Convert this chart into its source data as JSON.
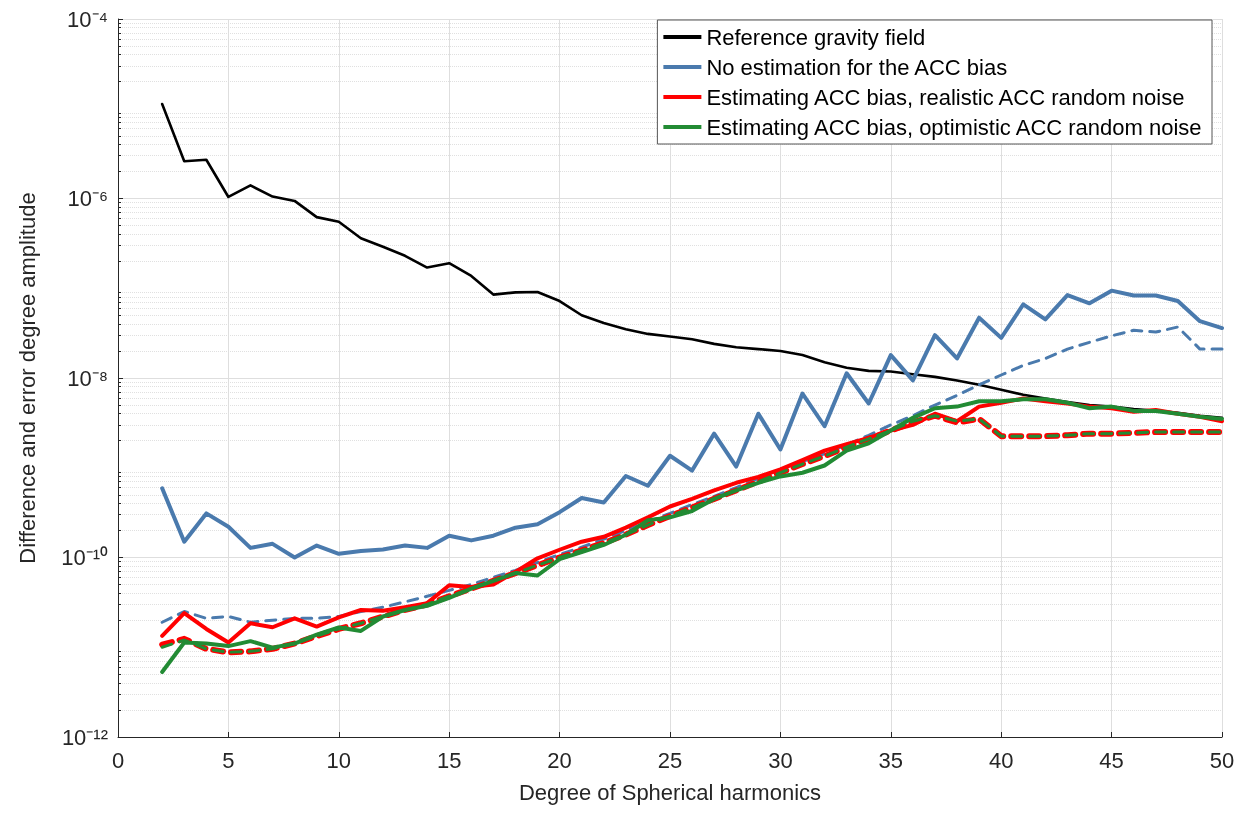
{
  "chart_data": {
    "type": "line",
    "xlabel": "Degree of Spherical harmonics",
    "ylabel": "Difference and error degree amplitude",
    "x": [
      2,
      3,
      4,
      5,
      6,
      7,
      8,
      9,
      10,
      11,
      12,
      13,
      14,
      15,
      16,
      17,
      18,
      19,
      20,
      21,
      22,
      23,
      24,
      25,
      26,
      27,
      28,
      29,
      30,
      31,
      32,
      33,
      34,
      35,
      36,
      37,
      38,
      39,
      40,
      41,
      42,
      43,
      44,
      45,
      46,
      47,
      48,
      49,
      50
    ],
    "xlim": [
      0,
      50
    ],
    "xticks": [
      0,
      5,
      10,
      15,
      20,
      25,
      30,
      35,
      40,
      45,
      50
    ],
    "ylim": [
      1e-12,
      0.0001
    ],
    "yticks": [
      {
        "value": 1e-12,
        "label": "10⁻¹²"
      },
      {
        "value": 1e-10,
        "label": "10⁻¹⁰"
      },
      {
        "value": 1e-08,
        "label": "10⁻⁸"
      },
      {
        "value": 1e-06,
        "label": "10⁻⁶"
      },
      {
        "value": 0.0001,
        "label": "10⁻⁴"
      }
    ],
    "log": "y",
    "grid": true,
    "legend": "top right",
    "marker": "none",
    "line_style": "solid",
    "series": [
      {
        "name": "Reference gravity field",
        "color": "#000000",
        "values": [
          1.13e-05,
          2.6e-06,
          2.7e-06,
          1.04e-06,
          1.4e-06,
          1.05e-06,
          9.4e-07,
          6.2e-07,
          5.5e-07,
          3.6e-07,
          2.9e-07,
          2.3e-07,
          1.7e-07,
          1.9e-07,
          1.37e-07,
          8.5e-08,
          9e-08,
          9.1e-08,
          7.2e-08,
          5e-08,
          4.1e-08,
          3.5e-08,
          3.1e-08,
          2.9e-08,
          2.7e-08,
          2.4e-08,
          2.2e-08,
          2.1e-08,
          2e-08,
          1.8e-08,
          1.5e-08,
          1.3e-08,
          1.2e-08,
          1.18e-08,
          1.1e-08,
          1.03e-08,
          9.4e-09,
          8.4e-09,
          7.4e-09,
          6.5e-09,
          5.9e-09,
          5.4e-09,
          5e-09,
          4.8e-09,
          4.5e-09,
          4.3e-09,
          4.1e-09,
          3.8e-09,
          3.6e-09
        ]
      },
      {
        "name": "No estimation for the ACC bias",
        "color": "#4a7aad",
        "values": [
          5.9e-10,
          1.5e-10,
          3.1e-10,
          2.2e-10,
          1.28e-10,
          1.42e-10,
          1e-10,
          1.36e-10,
          1.1e-10,
          1.18e-10,
          1.23e-10,
          1.36e-10,
          1.28e-10,
          1.75e-10,
          1.55e-10,
          1.75e-10,
          2.15e-10,
          2.35e-10,
          3.2e-10,
          4.6e-10,
          4.1e-10,
          8.1e-10,
          6.3e-10,
          1.36e-09,
          9.3e-10,
          2.4e-09,
          1.03e-09,
          4e-09,
          1.6e-09,
          6.7e-09,
          2.9e-09,
          1.13e-08,
          5.2e-09,
          1.8e-08,
          9.4e-09,
          3e-08,
          1.65e-08,
          4.7e-08,
          2.8e-08,
          6.6e-08,
          4.5e-08,
          8.4e-08,
          6.8e-08,
          9.4e-08,
          8.3e-08,
          8.3e-08,
          7.2e-08,
          4.3e-08,
          3.6e-08
        ]
      },
      {
        "color": "#4a7aad",
        "line_style": "dashed",
        "values": [
          1.9e-11,
          2.5e-11,
          2.1e-11,
          2.2e-11,
          1.9e-11,
          2e-11,
          2.1e-11,
          2.1e-11,
          2.2e-11,
          2.5e-11,
          2.8e-11,
          3.2e-11,
          3.7e-11,
          4.3e-11,
          5e-11,
          6e-11,
          7.2e-11,
          8.8e-11,
          1.08e-10,
          1.3e-10,
          1.6e-10,
          2e-10,
          2.5e-10,
          3.1e-10,
          3.9e-10,
          4.8e-10,
          6e-10,
          7.6e-10,
          9.6e-10,
          1.17e-09,
          1.43e-09,
          1.8e-09,
          2.3e-09,
          3e-09,
          3.8e-09,
          5e-09,
          6.4e-09,
          8.4e-09,
          1.08e-08,
          1.38e-08,
          1.65e-08,
          2.1e-08,
          2.5e-08,
          2.95e-08,
          3.4e-08,
          3.25e-08,
          3.7e-08,
          2.1e-08,
          2.1e-08
        ]
      },
      {
        "name": "Estimating ACC bias, realistic ACC random noise",
        "color": "#ff0000",
        "values": [
          1.34e-11,
          2.4e-11,
          1.6e-11,
          1.13e-11,
          1.85e-11,
          1.67e-11,
          2.1e-11,
          1.7e-11,
          2.15e-11,
          2.6e-11,
          2.55e-11,
          2.8e-11,
          3.1e-11,
          4.9e-11,
          4.7e-11,
          5e-11,
          6.9e-11,
          9.8e-11,
          1.22e-10,
          1.5e-10,
          1.7e-10,
          2.15e-10,
          2.8e-10,
          3.7e-10,
          4.5e-10,
          5.6e-10,
          6.8e-10,
          7.9e-10,
          9.6e-10,
          1.22e-09,
          1.55e-09,
          1.83e-09,
          2.15e-09,
          2.6e-09,
          3e-09,
          4e-09,
          3.3e-09,
          4.8e-09,
          5.3e-09,
          5.9e-09,
          5.5e-09,
          5.2e-09,
          4.8e-09,
          4.6e-09,
          4.2e-09,
          4.4e-09,
          4e-09,
          3.7e-09,
          3.3e-09
        ]
      },
      {
        "color": "#ff0000",
        "line_style": "dashed",
        "values": [
          1.07e-11,
          1.24e-11,
          9.6e-12,
          8.8e-12,
          9e-12,
          9.6e-12,
          1.1e-11,
          1.33e-11,
          1.6e-11,
          1.85e-11,
          2.2e-11,
          2.6e-11,
          3e-11,
          3.7e-11,
          4.5e-11,
          5.5e-11,
          6.7e-11,
          8.2e-11,
          1e-10,
          1.2e-10,
          1.45e-10,
          1.8e-10,
          2.3e-10,
          2.9e-10,
          3.6e-10,
          4.5e-10,
          5.6e-10,
          7e-10,
          8.8e-10,
          1.1e-09,
          1.35e-09,
          1.7e-09,
          2.1e-09,
          2.6e-09,
          3.2e-09,
          3.8e-09,
          3.2e-09,
          3.5e-09,
          2.25e-09,
          2.25e-09,
          2.25e-09,
          2.3e-09,
          2.4e-09,
          2.4e-09,
          2.45e-09,
          2.5e-09,
          2.5e-09,
          2.5e-09,
          2.5e-09
        ]
      },
      {
        "name": "Estimating ACC bias, optimistic ACC random noise",
        "color": "#228b34",
        "values": [
          5.3e-12,
          1.13e-11,
          1.1e-11,
          1.03e-11,
          1.17e-11,
          9.9e-12,
          1.1e-11,
          1.38e-11,
          1.66e-11,
          1.52e-11,
          2.2e-11,
          2.6e-11,
          2.9e-11,
          3.55e-11,
          4.5e-11,
          5.5e-11,
          6.7e-11,
          6.3e-11,
          9.6e-11,
          1.15e-10,
          1.38e-10,
          1.79e-10,
          2.6e-10,
          2.8e-10,
          3.3e-10,
          4.5e-10,
          5.6e-10,
          6.8e-10,
          8e-10,
          8.8e-10,
          1.06e-09,
          1.55e-09,
          1.87e-09,
          2.6e-09,
          3.6e-09,
          4.6e-09,
          4.8e-09,
          5.5e-09,
          5.5e-09,
          5.8e-09,
          5.8e-09,
          5.3e-09,
          4.6e-09,
          4.8e-09,
          4.3e-09,
          4.3e-09,
          4e-09,
          3.7e-09,
          3.5e-09
        ]
      },
      {
        "color": "#228b34",
        "line_style": "dashed",
        "values": [
          1e-11,
          1.2e-11,
          9.6e-12,
          8.8e-12,
          9e-12,
          9.6e-12,
          1.1e-11,
          1.33e-11,
          1.6e-11,
          1.85e-11,
          2.2e-11,
          2.6e-11,
          3e-11,
          3.7e-11,
          4.5e-11,
          5.5e-11,
          6.7e-11,
          8.2e-11,
          1e-10,
          1.2e-10,
          1.45e-10,
          1.8e-10,
          2.3e-10,
          2.9e-10,
          3.6e-10,
          4.5e-10,
          5.6e-10,
          7e-10,
          8.8e-10,
          1.1e-09,
          1.35e-09,
          1.7e-09,
          2.1e-09,
          2.6e-09,
          3.3e-09,
          3.8e-09,
          3.3e-09,
          3.5e-09,
          2.25e-09,
          2.25e-09,
          2.25e-09,
          2.3e-09,
          2.4e-09,
          2.4e-09,
          2.45e-09,
          2.5e-09,
          2.5e-09,
          2.5e-09,
          2.5e-09
        ]
      }
    ]
  }
}
